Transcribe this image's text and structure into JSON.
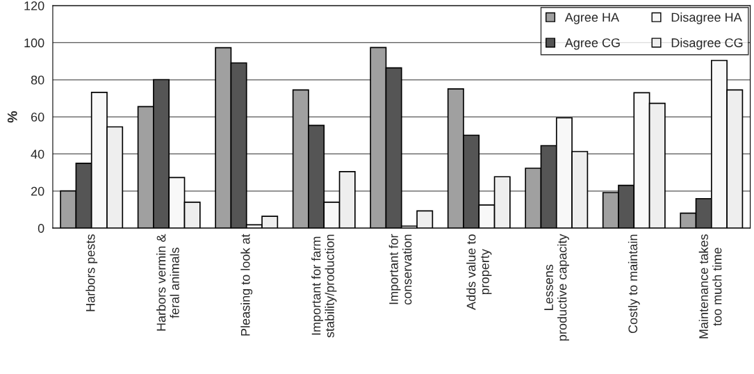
{
  "chart_data": {
    "type": "bar",
    "ylabel": "%",
    "categories": [
      "Harbors pests",
      "Harbors vermin &\nferal animals",
      "Pleasing to look at",
      "Important for farm\nstability/production",
      "Important for\nconservation",
      "Adds value to\nproperty",
      "Lessens\nproductive capacity",
      "Costly to maintain",
      "Maintenance takes\ntoo much time"
    ],
    "series": [
      {
        "name": "Agree HA",
        "color": "#a0a0a0",
        "values": [
          20.1,
          65.5,
          97.3,
          74.5,
          97.4,
          75.1,
          32.3,
          19.2,
          8.1
        ]
      },
      {
        "name": "Agree CG",
        "color": "#555555",
        "values": [
          35,
          80.1,
          89.1,
          55.4,
          86.4,
          50.1,
          44.5,
          23.1,
          15.9
        ]
      },
      {
        "name": "Disagree HA",
        "color": "#f8f8f8",
        "values": [
          73.2,
          27.3,
          1.8,
          14,
          1.1,
          12.5,
          59.5,
          73,
          90.4
        ]
      },
      {
        "name": "Disagree CG",
        "color": "#eeeeee",
        "values": [
          54.6,
          14,
          6.4,
          30.5,
          9.3,
          27.7,
          41.3,
          67.3,
          74.5
        ]
      }
    ],
    "ylim": [
      0,
      120
    ],
    "yticks": [
      0,
      20,
      40,
      60,
      80,
      100,
      120
    ],
    "grid": "y",
    "legend": "top right"
  }
}
